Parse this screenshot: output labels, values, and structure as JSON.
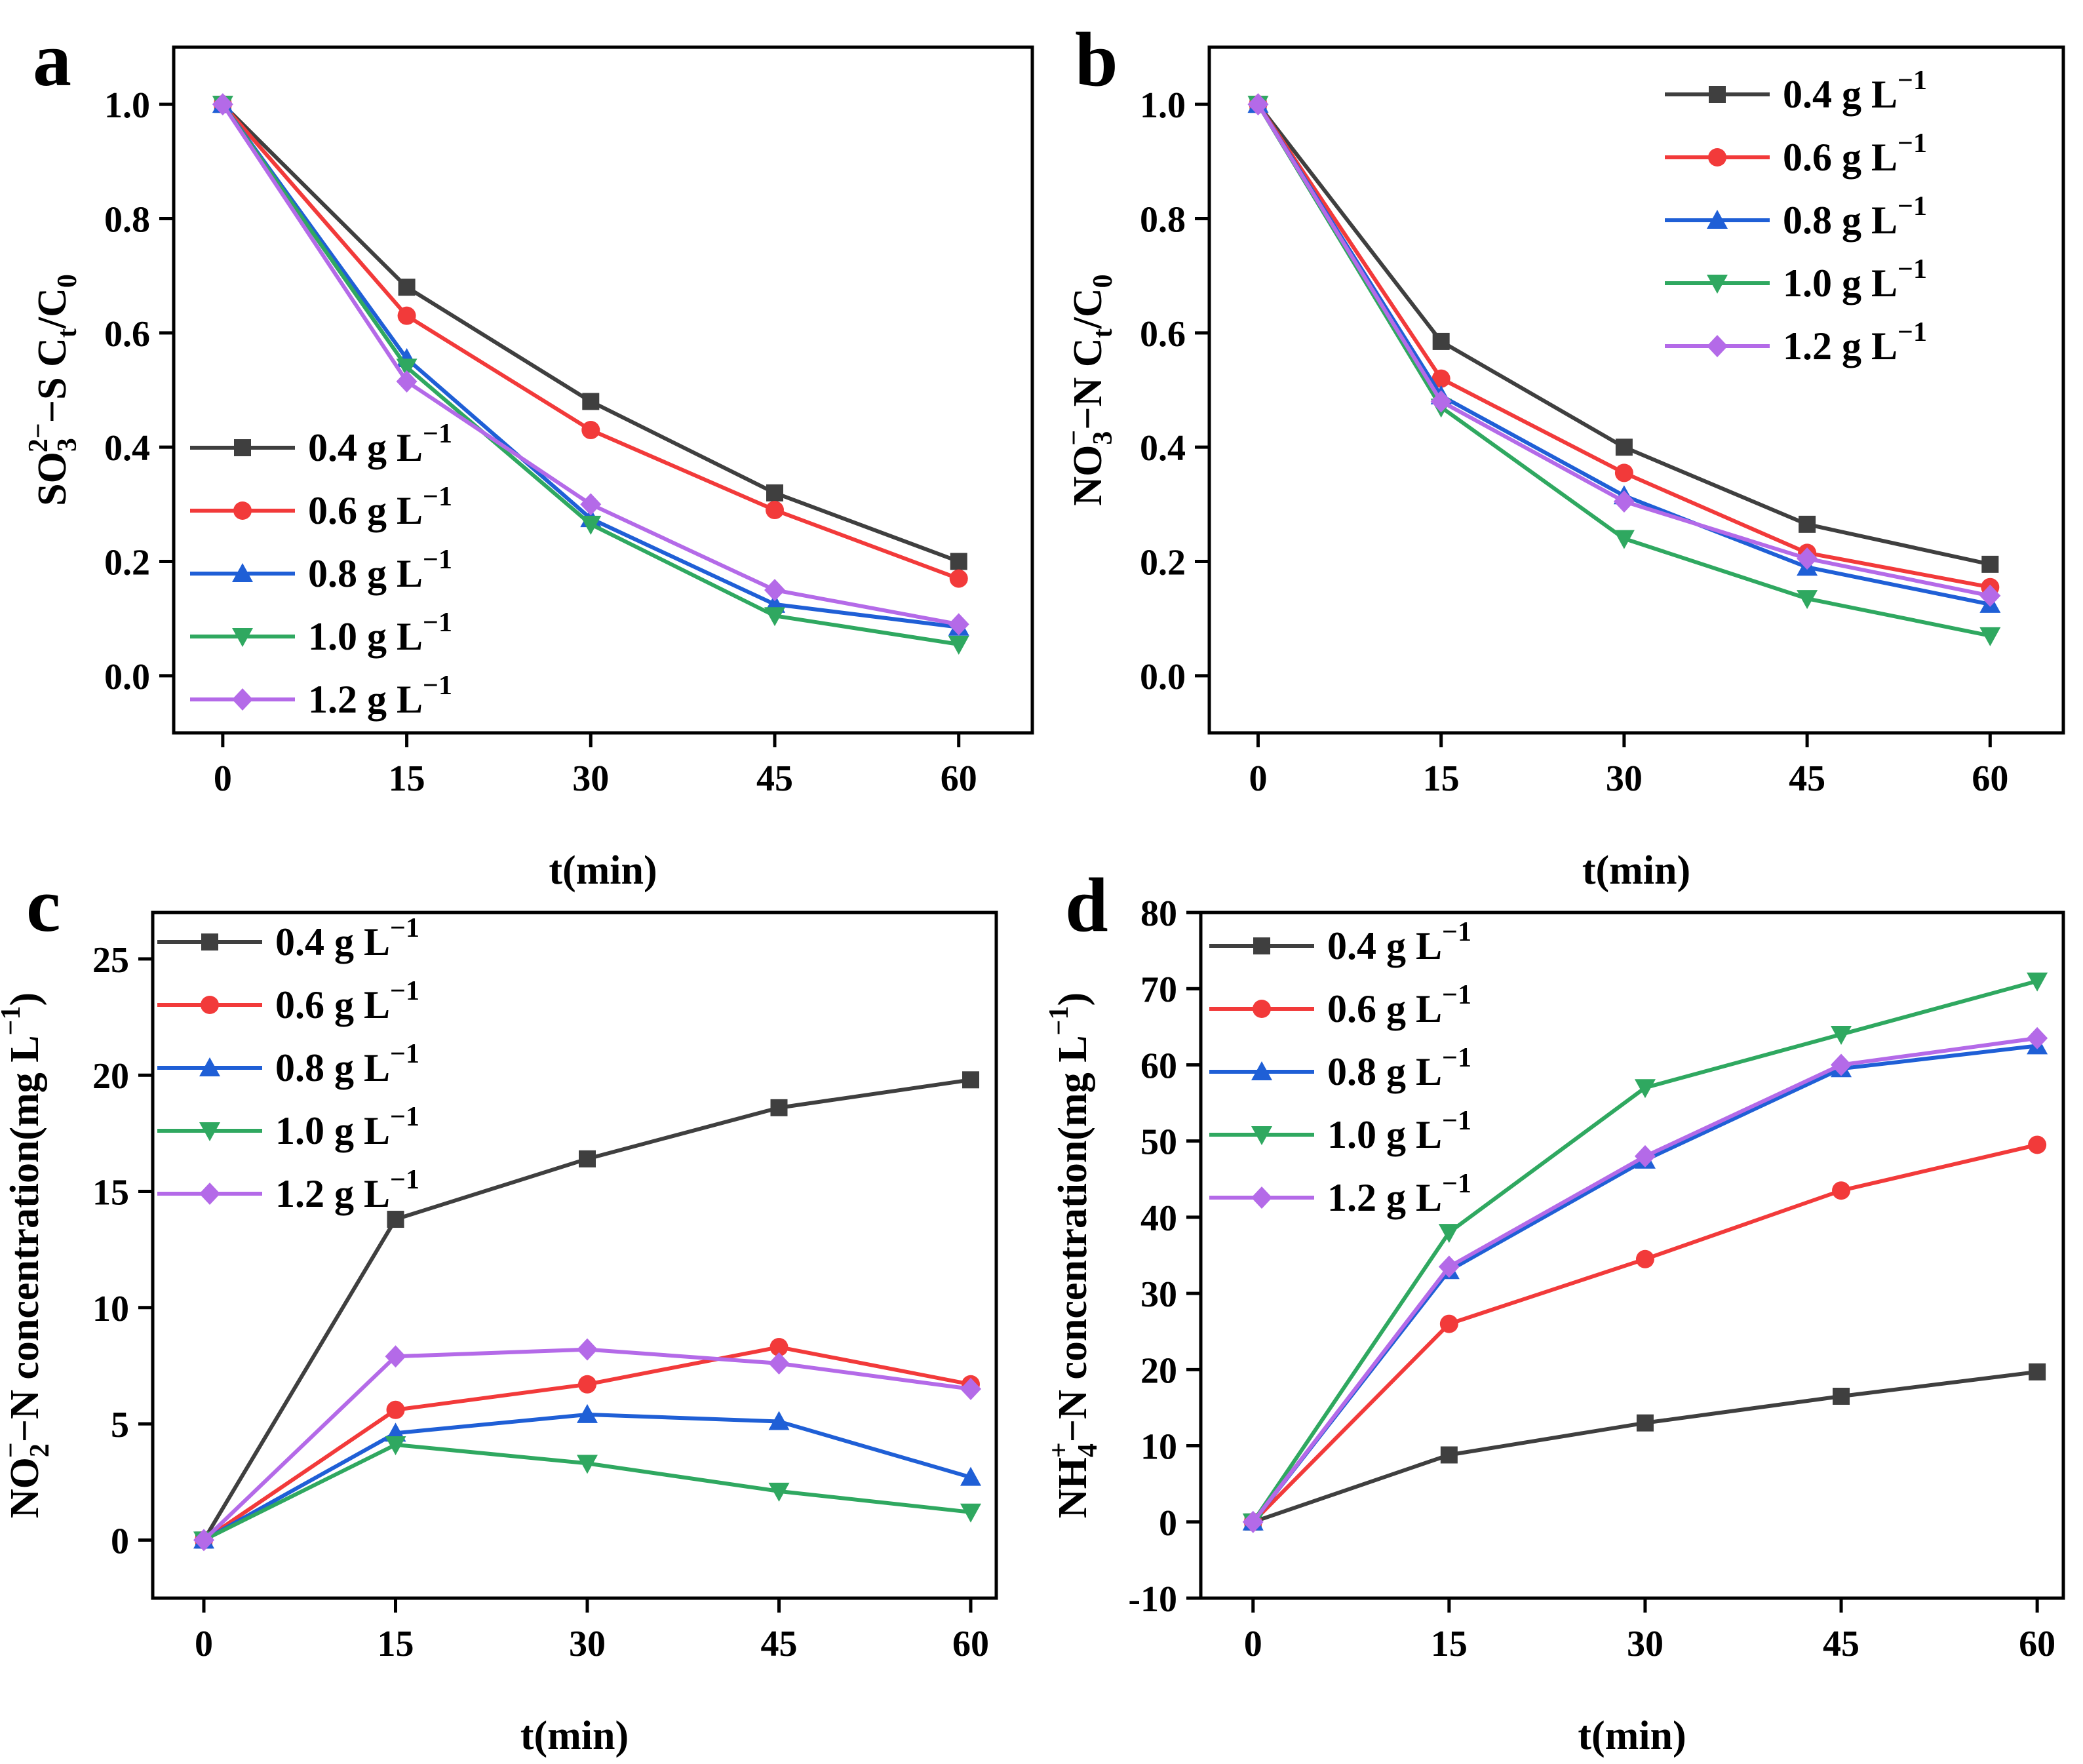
{
  "figure": {
    "series_styles": [
      {
        "color": "#3f3f3f",
        "marker": "square"
      },
      {
        "color": "#f23a3a",
        "marker": "circle"
      },
      {
        "color": "#1f5fd6",
        "marker": "triangle-up"
      },
      {
        "color": "#2fa860",
        "marker": "triangle-down"
      },
      {
        "color": "#b46ae8",
        "marker": "diamond"
      }
    ]
  },
  "chart_data": [
    {
      "id": "a",
      "panel_label": "a",
      "type": "line",
      "title": "",
      "xlabel": "t(min)",
      "ylabel": {
        "base": "SO",
        "sub1": "3",
        "sup": "2−",
        "mid": "−S C",
        "sub2": "t",
        "tail": "/C",
        "sub3": "0"
      },
      "x": [
        0,
        15,
        30,
        45,
        60
      ],
      "xlim": [
        -4,
        66
      ],
      "ylim": [
        -0.1,
        1.1
      ],
      "xticks": [
        0,
        15,
        30,
        45,
        60
      ],
      "yticks": [
        0.0,
        0.2,
        0.4,
        0.6,
        0.8,
        1.0
      ],
      "ytick_labels": [
        "0.0",
        "0.2",
        "0.4",
        "0.6",
        "0.8",
        "1.0"
      ],
      "legend_position": "lower-left",
      "series": [
        {
          "name": "0.4 g L",
          "sup": "−1",
          "values": [
            1.0,
            0.68,
            0.48,
            0.32,
            0.2
          ]
        },
        {
          "name": "0.6 g L",
          "sup": "−1",
          "values": [
            1.0,
            0.63,
            0.43,
            0.29,
            0.17
          ]
        },
        {
          "name": "0.8 g L",
          "sup": "−1",
          "values": [
            1.0,
            0.555,
            0.275,
            0.125,
            0.085
          ]
        },
        {
          "name": "1.0 g L",
          "sup": "−1",
          "values": [
            1.0,
            0.54,
            0.265,
            0.105,
            0.055
          ]
        },
        {
          "name": "1.2 g L",
          "sup": "−1",
          "values": [
            1.0,
            0.515,
            0.3,
            0.15,
            0.09
          ]
        }
      ]
    },
    {
      "id": "b",
      "panel_label": "b",
      "type": "line",
      "title": "",
      "xlabel": "t(min)",
      "ylabel": {
        "base": "NO",
        "sub1": "3",
        "sup": "−",
        "mid": "−N C",
        "sub2": "t",
        "tail": "/C",
        "sub3": "0"
      },
      "x": [
        0,
        15,
        30,
        45,
        60
      ],
      "xlim": [
        -4,
        66
      ],
      "ylim": [
        -0.1,
        1.1
      ],
      "xticks": [
        0,
        15,
        30,
        45,
        60
      ],
      "yticks": [
        0.0,
        0.2,
        0.4,
        0.6,
        0.8,
        1.0
      ],
      "ytick_labels": [
        "0.0",
        "0.2",
        "0.4",
        "0.6",
        "0.8",
        "1.0"
      ],
      "legend_position": "top-right",
      "series": [
        {
          "name": "0.4 g L",
          "sup": "−1",
          "values": [
            1.0,
            0.585,
            0.4,
            0.265,
            0.195
          ]
        },
        {
          "name": "0.6 g L",
          "sup": "−1",
          "values": [
            1.0,
            0.52,
            0.355,
            0.215,
            0.155
          ]
        },
        {
          "name": "0.8 g L",
          "sup": "−1",
          "values": [
            1.0,
            0.49,
            0.315,
            0.19,
            0.125
          ]
        },
        {
          "name": "1.0 g L",
          "sup": "−1",
          "values": [
            1.0,
            0.47,
            0.24,
            0.135,
            0.07
          ]
        },
        {
          "name": "1.2 g L",
          "sup": "−1",
          "values": [
            1.0,
            0.48,
            0.305,
            0.205,
            0.14
          ]
        }
      ]
    },
    {
      "id": "c",
      "panel_label": "c",
      "type": "line",
      "title": "",
      "xlabel": "t(min)",
      "ylabel": {
        "base": "NO",
        "sub1": "2",
        "sup": "−",
        "mid": "−N concentration(mg L",
        "sup2": "−1",
        "tail": ")"
      },
      "x": [
        0,
        15,
        30,
        45,
        60
      ],
      "xlim": [
        -4,
        62
      ],
      "ylim": [
        -2.5,
        27
      ],
      "xticks": [
        0,
        15,
        30,
        45,
        60
      ],
      "yticks": [
        0,
        5,
        10,
        15,
        20,
        25
      ],
      "ytick_labels": [
        "0",
        "5",
        "10",
        "15",
        "20",
        "25"
      ],
      "legend_position": "top-left",
      "series": [
        {
          "name": "0.4 g L",
          "sup": "−1",
          "values": [
            0,
            13.8,
            16.4,
            18.6,
            19.8
          ]
        },
        {
          "name": "0.6 g L",
          "sup": "−1",
          "values": [
            0,
            5.6,
            6.7,
            8.3,
            6.7
          ]
        },
        {
          "name": "0.8 g L",
          "sup": "−1",
          "values": [
            0,
            4.6,
            5.4,
            5.1,
            2.7
          ]
        },
        {
          "name": "1.0 g L",
          "sup": "−1",
          "values": [
            0,
            4.1,
            3.3,
            2.1,
            1.2
          ]
        },
        {
          "name": "1.2 g L",
          "sup": "−1",
          "values": [
            0,
            7.9,
            8.2,
            7.6,
            6.5
          ]
        }
      ]
    },
    {
      "id": "d",
      "panel_label": "d",
      "type": "line",
      "title": "",
      "xlabel": "t(min)",
      "ylabel": {
        "base": "NH",
        "sub1": "4",
        "sup": "+",
        "mid": "−N concentration(mg L",
        "sup2": "−1",
        "tail": ")"
      },
      "x": [
        0,
        15,
        30,
        45,
        60
      ],
      "xlim": [
        -4,
        62
      ],
      "ylim": [
        -10,
        80
      ],
      "xticks": [
        0,
        15,
        30,
        45,
        60
      ],
      "yticks": [
        -10,
        0,
        10,
        20,
        30,
        40,
        50,
        60,
        70,
        80
      ],
      "ytick_labels": [
        "-10",
        "0",
        "10",
        "20",
        "30",
        "40",
        "50",
        "60",
        "70",
        "80"
      ],
      "legend_position": "top-left",
      "series": [
        {
          "name": "0.4 g L",
          "sup": "−1",
          "values": [
            0,
            8.8,
            13.0,
            16.5,
            19.7
          ]
        },
        {
          "name": "0.6 g L",
          "sup": "−1",
          "values": [
            0,
            26.0,
            34.5,
            43.5,
            49.5
          ]
        },
        {
          "name": "0.8 g L",
          "sup": "−1",
          "values": [
            0,
            33.0,
            47.5,
            59.5,
            62.5
          ]
        },
        {
          "name": "1.0 g L",
          "sup": "−1",
          "values": [
            0,
            38.0,
            57.0,
            64.0,
            71.0
          ]
        },
        {
          "name": "1.2 g L",
          "sup": "−1",
          "values": [
            0,
            33.5,
            48.0,
            60.0,
            63.5
          ]
        }
      ]
    }
  ]
}
